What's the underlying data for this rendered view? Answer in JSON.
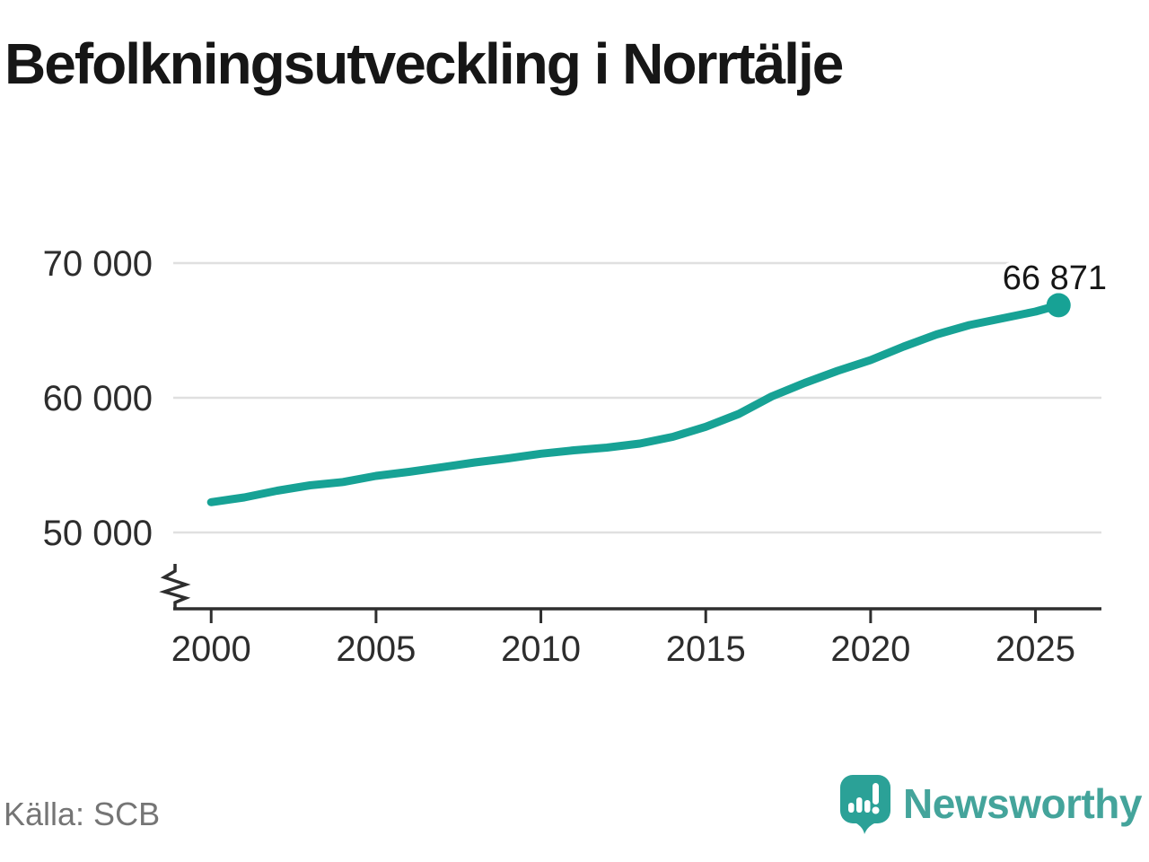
{
  "title": "Befolkningsutveckling i Norrtälje",
  "source": "Källa: SCB",
  "branding": {
    "name": "Newsworthy",
    "logo_icon": "speech-bubble-bar-chart-icon",
    "color": "#44a49b",
    "mark_color": "#2ba197"
  },
  "colors": {
    "line": "#17a295",
    "grid": "#e0e0e0",
    "axis": "#2e2e2e",
    "tick_label": "#2d2d2d",
    "data_label": "#161616"
  },
  "chart_data": {
    "type": "line",
    "title": "Befolkningsutveckling i Norrtälje",
    "xlabel": "",
    "ylabel": "",
    "grid": true,
    "legend": "none",
    "axis_break": true,
    "xlim": [
      1998.85,
      2027.0
    ],
    "ylim": [
      44400,
      71800
    ],
    "xticks": [
      {
        "value": 2000,
        "label": "2000"
      },
      {
        "value": 2005,
        "label": "2005"
      },
      {
        "value": 2010,
        "label": "2010"
      },
      {
        "value": 2015,
        "label": "2015"
      },
      {
        "value": 2020,
        "label": "2020"
      },
      {
        "value": 2025,
        "label": "2025"
      }
    ],
    "yticks": [
      {
        "value": 50000,
        "label": "50 000"
      },
      {
        "value": 60000,
        "label": "60 000"
      },
      {
        "value": 70000,
        "label": "70 000"
      }
    ],
    "points": [
      [
        2000,
        52250
      ],
      [
        2001,
        52600
      ],
      [
        2002,
        53100
      ],
      [
        2003,
        53500
      ],
      [
        2004,
        53750
      ],
      [
        2005,
        54200
      ],
      [
        2006,
        54500
      ],
      [
        2007,
        54850
      ],
      [
        2008,
        55200
      ],
      [
        2009,
        55500
      ],
      [
        2010,
        55850
      ],
      [
        2011,
        56100
      ],
      [
        2012,
        56300
      ],
      [
        2013,
        56600
      ],
      [
        2014,
        57100
      ],
      [
        2015,
        57850
      ],
      [
        2016,
        58800
      ],
      [
        2017,
        60100
      ],
      [
        2018,
        61100
      ],
      [
        2019,
        62000
      ],
      [
        2020,
        62800
      ],
      [
        2021,
        63800
      ],
      [
        2022,
        64700
      ],
      [
        2023,
        65400
      ],
      [
        2024,
        65900
      ],
      [
        2025,
        66400
      ],
      [
        2025.7,
        66871
      ]
    ],
    "last_point_label": "66 871",
    "last_point_value": 66871
  }
}
